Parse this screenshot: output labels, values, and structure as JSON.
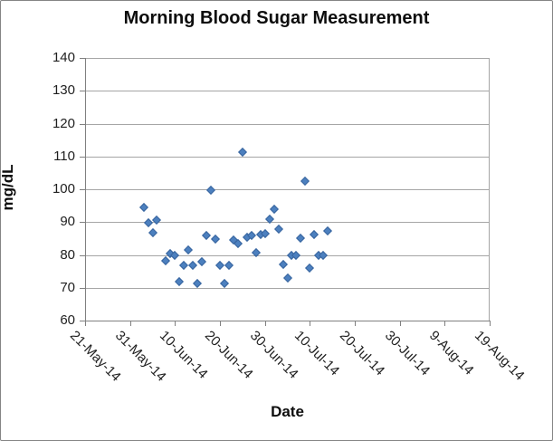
{
  "colors": {
    "marker_fill": "#4C80BF",
    "marker_border": "#38649E",
    "gridline": "#A6A6A6",
    "axis_line": "#808080",
    "label_text": "#1F1F1F",
    "title_text": "#0D0D0D",
    "background": "#FFFFFF"
  },
  "chart_data": {
    "type": "scatter",
    "title": "Morning Blood Sugar Measurement",
    "xlabel": "Date",
    "ylabel": "mg/dL",
    "ylim": [
      60,
      140
    ],
    "y_tick_step": 10,
    "y_tick_labels": [
      "60",
      "70",
      "80",
      "90",
      "100",
      "110",
      "120",
      "130",
      "140"
    ],
    "x_tick_labels": [
      "21-May-14",
      "31-May-14",
      "10-Jun-14",
      "20-Jun-14",
      "30-Jun-14",
      "10-Jul-14",
      "20-Jul-14",
      "30-Jul-14",
      "9-Aug-14",
      "19-Aug-14"
    ],
    "x_range_days": [
      0,
      90
    ],
    "x_tick_interval_days": 10,
    "grid": "horizontal-only",
    "legend": false,
    "marker": {
      "shape": "diamond",
      "color": "#4C80BF"
    },
    "points": [
      {
        "date": "3-Jun-14",
        "day": 13,
        "value": 94.5
      },
      {
        "date": "4-Jun-14",
        "day": 14,
        "value": 89.8
      },
      {
        "date": "5-Jun-14",
        "day": 15,
        "value": 86.8
      },
      {
        "date": "6-Jun-14",
        "day": 16,
        "value": 90.7
      },
      {
        "date": "8-Jun-14",
        "day": 18,
        "value": 78.1
      },
      {
        "date": "9-Jun-14",
        "day": 19,
        "value": 80.3
      },
      {
        "date": "10-Jun-14",
        "day": 20,
        "value": 79.8
      },
      {
        "date": "11-Jun-14",
        "day": 21,
        "value": 71.9
      },
      {
        "date": "12-Jun-14",
        "day": 22,
        "value": 76.8
      },
      {
        "date": "13-Jun-14",
        "day": 23,
        "value": 81.5
      },
      {
        "date": "14-Jun-14",
        "day": 24,
        "value": 76.8
      },
      {
        "date": "15-Jun-14",
        "day": 25,
        "value": 71.3
      },
      {
        "date": "16-Jun-14",
        "day": 26,
        "value": 78.0
      },
      {
        "date": "17-Jun-14",
        "day": 27,
        "value": 86.0
      },
      {
        "date": "18-Jun-14",
        "day": 28,
        "value": 99.7
      },
      {
        "date": "19-Jun-14",
        "day": 29,
        "value": 84.7
      },
      {
        "date": "20-Jun-14",
        "day": 30,
        "value": 76.9
      },
      {
        "date": "21-Jun-14",
        "day": 31,
        "value": 71.3
      },
      {
        "date": "22-Jun-14",
        "day": 32,
        "value": 76.9
      },
      {
        "date": "23-Jun-14",
        "day": 33,
        "value": 84.6
      },
      {
        "date": "24-Jun-14",
        "day": 34,
        "value": 83.4
      },
      {
        "date": "25-Jun-14",
        "day": 35,
        "value": 111.3
      },
      {
        "date": "26-Jun-14",
        "day": 36,
        "value": 85.4
      },
      {
        "date": "27-Jun-14",
        "day": 37,
        "value": 85.9
      },
      {
        "date": "28-Jun-14",
        "day": 38,
        "value": 80.8
      },
      {
        "date": "29-Jun-14",
        "day": 39,
        "value": 86.1
      },
      {
        "date": "30-Jun-14",
        "day": 40,
        "value": 86.5
      },
      {
        "date": "1-Jul-14",
        "day": 41,
        "value": 90.9
      },
      {
        "date": "2-Jul-14",
        "day": 42,
        "value": 94.0
      },
      {
        "date": "3-Jul-14",
        "day": 43,
        "value": 87.9
      },
      {
        "date": "4-Jul-14",
        "day": 44,
        "value": 77.2
      },
      {
        "date": "5-Jul-14",
        "day": 45,
        "value": 72.9
      },
      {
        "date": "6-Jul-14",
        "day": 46,
        "value": 79.9
      },
      {
        "date": "7-Jul-14",
        "day": 47,
        "value": 79.9
      },
      {
        "date": "8-Jul-14",
        "day": 48,
        "value": 85.1
      },
      {
        "date": "9-Jul-14",
        "day": 49,
        "value": 102.4
      },
      {
        "date": "10-Jul-14",
        "day": 50,
        "value": 76.0
      },
      {
        "date": "11-Jul-14",
        "day": 51,
        "value": 86.2
      },
      {
        "date": "12-Jul-14",
        "day": 52,
        "value": 79.9
      },
      {
        "date": "13-Jul-14",
        "day": 53,
        "value": 79.9
      },
      {
        "date": "14-Jul-14",
        "day": 54,
        "value": 87.4
      }
    ]
  }
}
